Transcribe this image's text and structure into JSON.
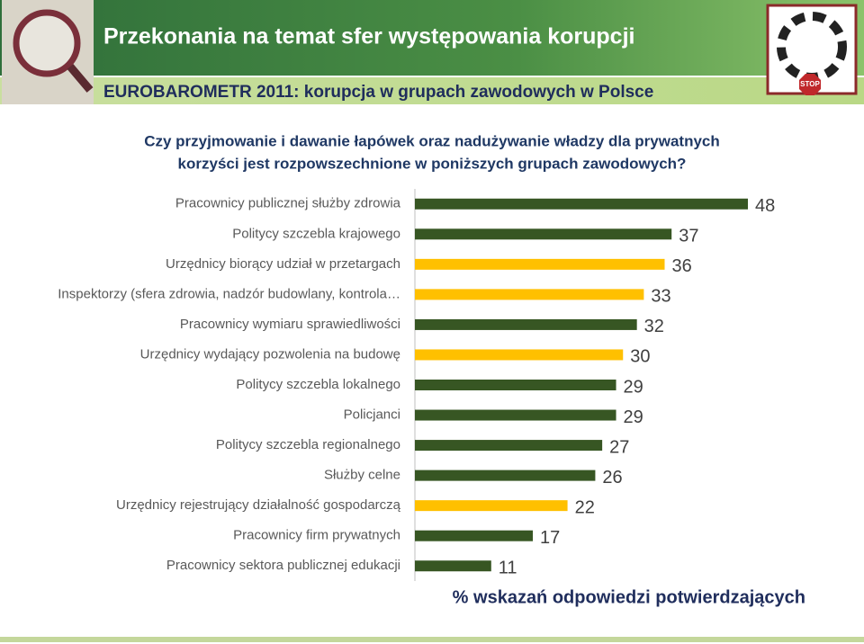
{
  "header": {
    "title": "Przekonania na temat sfer występowania korupcji",
    "subtitle": "EUROBAROMETR 2011: korupcja w grupach zawodowych w Polsce",
    "logo_text": "STOP"
  },
  "chart_data": {
    "type": "bar",
    "orientation": "horizontal",
    "title": [
      "Czy przyjmowanie i dawanie łapówek oraz nadużywanie władzy dla prywatnych",
      "korzyści jest rozpowszechnione w poniższych grupach zawodowych?"
    ],
    "xlabel": "% wskazań odpowiedzi potwierdzających",
    "categories": [
      "Pracownicy publicznej służby zdrowia",
      "Politycy szczebla krajowego",
      "Urzędnicy biorący udział w przetargach",
      "Inspektorzy (sfera zdrowia, nadzór budowlany, kontrola…",
      "Pracownicy wymiaru sprawiedliwości",
      "Urzędnicy wydający pozwolenia na budowę",
      "Politycy szczebla lokalnego",
      "Policjanci",
      "Politycy szczebla regionalnego",
      "Służby celne",
      "Urzędnicy rejestrujący działalność gospodarczą",
      "Pracownicy firm prywatnych",
      "Pracownicy sektora publicznej edukacji"
    ],
    "values": [
      48,
      37,
      36,
      33,
      32,
      30,
      29,
      29,
      27,
      26,
      22,
      17,
      11
    ],
    "colors": [
      "#375623",
      "#375623",
      "#ffc000",
      "#ffc000",
      "#375623",
      "#ffc000",
      "#375623",
      "#375623",
      "#375623",
      "#375623",
      "#ffc000",
      "#375623",
      "#375623"
    ]
  }
}
